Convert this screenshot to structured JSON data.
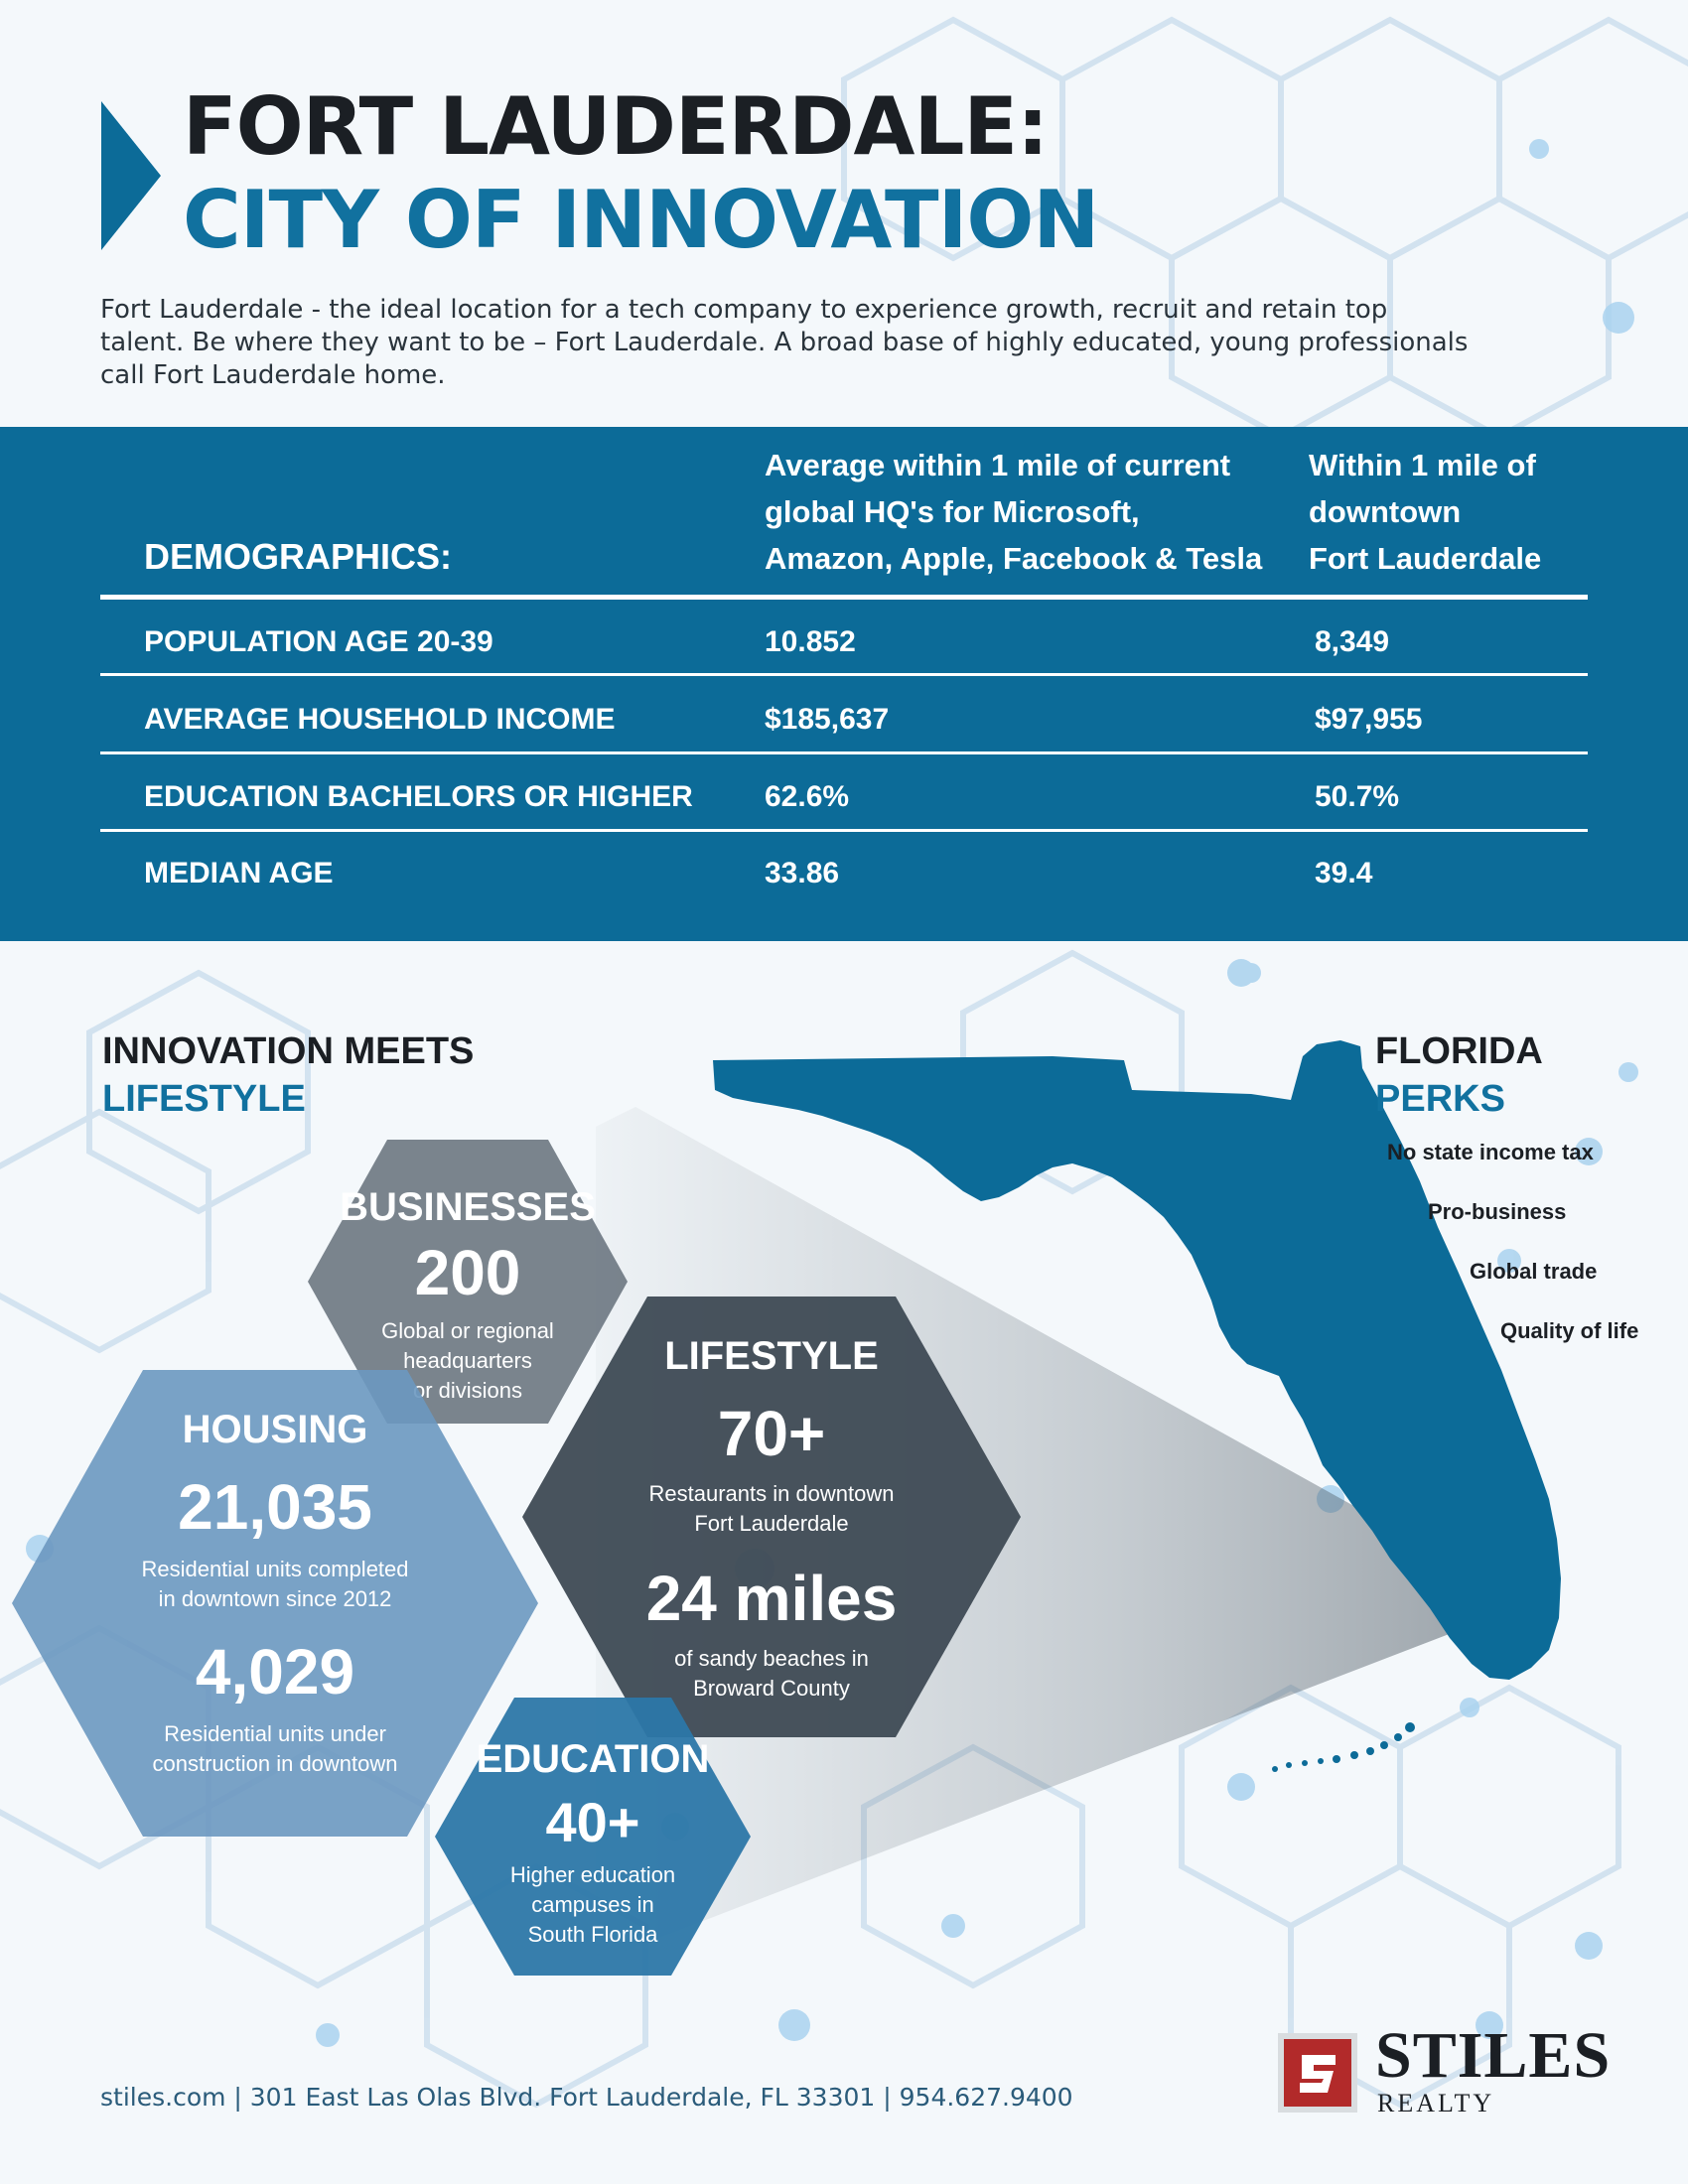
{
  "header": {
    "title_line1": "FORT LAUDERDALE:",
    "title_line2": "CITY OF INNOVATION",
    "intro": "Fort Lauderdale - the ideal location for a tech company to experience growth, recruit and retain top talent. Be where they want to be – Fort Lauderdale. A broad base of highly educated, young professionals call Fort Lauderdale home."
  },
  "demographics": {
    "label": "DEMOGRAPHICS:",
    "col1_lines": [
      "Average within 1 mile of current",
      "global HQ's for Microsoft,",
      "Amazon, Apple, Facebook & Tesla"
    ],
    "col2_lines": [
      "Within 1 mile of",
      "downtown",
      "Fort Lauderdale"
    ],
    "rows": [
      {
        "label": "POPULATION AGE 20-39",
        "hq_avg": "10.852",
        "downtown": "8,349"
      },
      {
        "label": "AVERAGE HOUSEHOLD INCOME",
        "hq_avg": "$185,637",
        "downtown": "$97,955"
      },
      {
        "label": "EDUCATION BACHELORS OR HIGHER",
        "hq_avg": "62.6%",
        "downtown": "50.7%"
      },
      {
        "label": "MEDIAN AGE",
        "hq_avg": "33.86",
        "downtown": "39.4"
      }
    ]
  },
  "innovation": {
    "heading_line1": "INNOVATION MEETS",
    "heading_line2": "LIFESTYLE"
  },
  "hexes": {
    "businesses": {
      "title": "BUSINESSES",
      "value": "200",
      "desc_lines": [
        "Global or regional",
        "headquarters",
        "or divisions"
      ]
    },
    "housing": {
      "title": "HOUSING",
      "value1": "21,035",
      "desc1_lines": [
        "Residential units completed",
        "in downtown since 2012"
      ],
      "value2": "4,029",
      "desc2_lines": [
        "Residential units under",
        "construction in downtown"
      ]
    },
    "lifestyle": {
      "title": "LIFESTYLE",
      "value1": "70+",
      "desc1_lines": [
        "Restaurants in downtown",
        "Fort Lauderdale"
      ],
      "value2": "24 miles",
      "desc2_lines": [
        "of sandy beaches in",
        "Broward County"
      ]
    },
    "education": {
      "title": "EDUCATION",
      "value": "40+",
      "desc_lines": [
        "Higher education",
        "campuses in",
        "South Florida"
      ]
    }
  },
  "perks": {
    "heading_line1": "FLORIDA",
    "heading_line2": "PERKS",
    "items": [
      "No state income tax",
      "Pro-business",
      "Global trade",
      "Quality of life"
    ]
  },
  "footer": {
    "contact": "stiles.com | 301 East Las Olas Blvd. Fort Lauderdale, FL 33301 | 954.627.9400",
    "brand_name": "STILES",
    "brand_sub": "REALTY"
  },
  "colors": {
    "brand_blue": "#0c6b98",
    "title_blue": "#11719f",
    "hex_gray": "#6f7a83",
    "hex_dark": "#3e4a54",
    "hex_light_blue": "#6b98c0",
    "hex_education": "#2c77a8",
    "logo_red": "#b22a2a"
  }
}
